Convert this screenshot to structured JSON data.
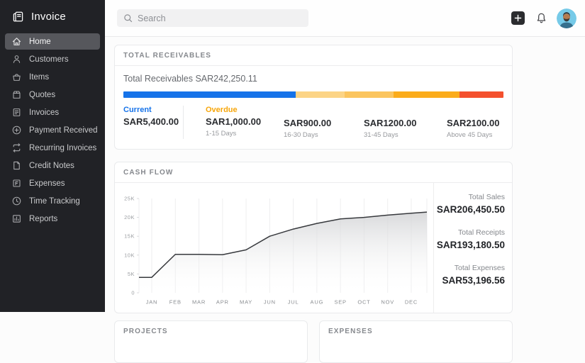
{
  "app": {
    "logo_text": "Invoice"
  },
  "sidebar": {
    "items": [
      {
        "label": "Home",
        "icon": "home-icon",
        "active": true
      },
      {
        "label": "Customers",
        "icon": "customers-icon",
        "active": false
      },
      {
        "label": "Items",
        "icon": "items-icon",
        "active": false
      },
      {
        "label": "Quotes",
        "icon": "quotes-icon",
        "active": false
      },
      {
        "label": "Invoices",
        "icon": "invoices-icon",
        "active": false
      },
      {
        "label": "Payment Received",
        "icon": "payment-received-icon",
        "active": false
      },
      {
        "label": "Recurring Invoices",
        "icon": "recurring-invoices-icon",
        "active": false
      },
      {
        "label": "Credit Notes",
        "icon": "credit-notes-icon",
        "active": false
      },
      {
        "label": "Expenses",
        "icon": "expenses-icon",
        "active": false
      },
      {
        "label": "Time Tracking",
        "icon": "time-tracking-icon",
        "active": false
      },
      {
        "label": "Reports",
        "icon": "reports-icon",
        "active": false
      }
    ]
  },
  "topbar": {
    "search_placeholder": "Search"
  },
  "receivables": {
    "header": "TOTAL RECEIVABLES",
    "summary_label": "Total Receivables",
    "summary_value": "SAR242,250.11",
    "bar_segments": [
      {
        "name": "current",
        "color": "#1673e9",
        "pct": 45.4
      },
      {
        "name": "overdue-1-15",
        "color": "#fcd486",
        "pct": 12.8
      },
      {
        "name": "overdue-16-30",
        "color": "#fbc55f",
        "pct": 12.9
      },
      {
        "name": "overdue-31-45",
        "color": "#fbac1b",
        "pct": 17.4
      },
      {
        "name": "overdue-above-45",
        "color": "#f4502e",
        "pct": 11.5
      }
    ],
    "breakdown": [
      {
        "label": "Current",
        "label_color": "#1673e9",
        "amount": "SAR5,400.00",
        "days": ""
      },
      {
        "label": "Overdue",
        "label_color": "#f7a60a",
        "amount": "SAR1,000.00",
        "days": "1-15 Days"
      },
      {
        "label": "",
        "label_color": "",
        "amount": "SAR900.00",
        "days": "16-30 Days"
      },
      {
        "label": "",
        "label_color": "",
        "amount": "SAR1200.00",
        "days": "31-45 Days"
      },
      {
        "label": "",
        "label_color": "",
        "amount": "SAR2100.00",
        "days": "Above 45 Days"
      }
    ]
  },
  "cashflow": {
    "header": "CASH FLOW",
    "totals": [
      {
        "label": "Total Sales",
        "value": "SAR206,450.50"
      },
      {
        "label": "Total Receipts",
        "value": "SAR193,180.50"
      },
      {
        "label": "Total Expenses",
        "value": "SAR53,196.56"
      }
    ]
  },
  "chart_data": {
    "type": "area",
    "title": "Cash Flow",
    "x": [
      "JAN",
      "FEB",
      "MAR",
      "APR",
      "MAY",
      "JUN",
      "JUL",
      "AUG",
      "SEP",
      "OCT",
      "NOV",
      "DEC"
    ],
    "values": [
      4100,
      10200,
      10200,
      10100,
      11400,
      15000,
      16900,
      18400,
      19600,
      20000,
      20600,
      21100
    ],
    "ylabel": "",
    "xlabel": "",
    "ylim": [
      0,
      25000
    ],
    "yticks": [
      {
        "label": "25K",
        "value": 25000
      },
      {
        "label": "20K",
        "value": 20000
      },
      {
        "label": "15K",
        "value": 15000
      },
      {
        "label": "10K",
        "value": 10000
      },
      {
        "label": "5K",
        "value": 5000
      },
      {
        "label": "0",
        "value": 0
      }
    ],
    "grid": true,
    "line_color": "#37393d",
    "fill_color": "#d2d3d5",
    "legend": "none"
  },
  "bottom_cards": [
    {
      "header": "PROJECTS"
    },
    {
      "header": "EXPENSES"
    }
  ]
}
